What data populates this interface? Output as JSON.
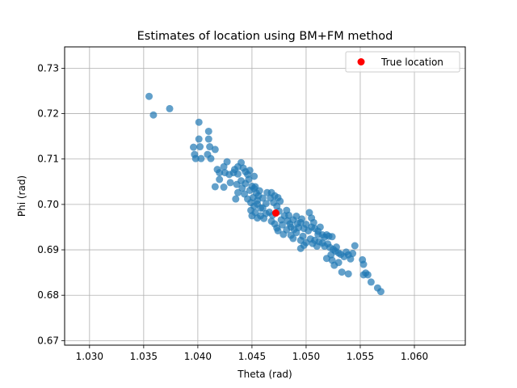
{
  "chart_data": {
    "type": "scatter",
    "title": "Estimates of location using BM+FM method",
    "xlabel": "Theta (rad)",
    "ylabel": "Phi (rad)",
    "xlim": [
      1.0277,
      1.0647
    ],
    "ylim": [
      0.669,
      0.7347
    ],
    "xticks": [
      1.03,
      1.035,
      1.04,
      1.045,
      1.05,
      1.055,
      1.06
    ],
    "xtick_labels": [
      "1.030",
      "1.035",
      "1.040",
      "1.045",
      "1.050",
      "1.055",
      "1.060"
    ],
    "yticks": [
      0.67,
      0.68,
      0.69,
      0.7,
      0.71,
      0.72,
      0.73
    ],
    "ytick_labels": [
      "0.67",
      "0.68",
      "0.69",
      "0.70",
      "0.71",
      "0.72",
      "0.73"
    ],
    "grid": true,
    "legend_position": "top-right",
    "series": [
      {
        "name": "",
        "color": "#1f77b4",
        "alpha": 0.7,
        "points": [
          [
            1.0355,
            0.7238
          ],
          [
            1.0359,
            0.7197
          ],
          [
            1.0374,
            0.7211
          ],
          [
            1.0401,
            0.7181
          ],
          [
            1.041,
            0.7161
          ],
          [
            1.041,
            0.7144
          ],
          [
            1.0401,
            0.7144
          ],
          [
            1.0411,
            0.7127
          ],
          [
            1.0416,
            0.7121
          ],
          [
            1.0396,
            0.7126
          ],
          [
            1.0397,
            0.711
          ],
          [
            1.0402,
            0.7127
          ],
          [
            1.0398,
            0.7101
          ],
          [
            1.0403,
            0.7101
          ],
          [
            1.0412,
            0.7101
          ],
          [
            1.0409,
            0.711
          ],
          [
            1.0418,
            0.7077
          ],
          [
            1.042,
            0.707
          ],
          [
            1.0424,
            0.7083
          ],
          [
            1.0427,
            0.7094
          ],
          [
            1.0425,
            0.707
          ],
          [
            1.0429,
            0.7066
          ],
          [
            1.0433,
            0.707
          ],
          [
            1.0437,
            0.7083
          ],
          [
            1.0434,
            0.7077
          ],
          [
            1.044,
            0.7092
          ],
          [
            1.0442,
            0.708
          ],
          [
            1.0437,
            0.7067
          ],
          [
            1.0444,
            0.7072
          ],
          [
            1.0446,
            0.7066
          ],
          [
            1.0448,
            0.7075
          ],
          [
            1.0452,
            0.7062
          ],
          [
            1.042,
            0.7055
          ],
          [
            1.0416,
            0.7039
          ],
          [
            1.0424,
            0.7038
          ],
          [
            1.043,
            0.7048
          ],
          [
            1.0436,
            0.7044
          ],
          [
            1.044,
            0.7052
          ],
          [
            1.0441,
            0.7036
          ],
          [
            1.0444,
            0.7046
          ],
          [
            1.0447,
            0.7055
          ],
          [
            1.045,
            0.704
          ],
          [
            1.0437,
            0.7026
          ],
          [
            1.0435,
            0.7012
          ],
          [
            1.0443,
            0.7023
          ],
          [
            1.0448,
            0.7031
          ],
          [
            1.0452,
            0.7035
          ],
          [
            1.0454,
            0.7025
          ],
          [
            1.0451,
            0.7015
          ],
          [
            1.0455,
            0.7009
          ],
          [
            1.0449,
            0.7004
          ],
          [
            1.0446,
            0.7012
          ],
          [
            1.0456,
            0.7019
          ],
          [
            1.0457,
            0.703
          ],
          [
            1.0453,
            0.7039
          ],
          [
            1.0455,
            0.7001
          ],
          [
            1.0452,
            0.6996
          ],
          [
            1.0458,
            0.6992
          ],
          [
            1.0463,
            0.7002
          ],
          [
            1.046,
            0.7014
          ],
          [
            1.0464,
            0.7026
          ],
          [
            1.0468,
            0.7026
          ],
          [
            1.0467,
            0.7014
          ],
          [
            1.047,
            0.7004
          ],
          [
            1.0471,
            0.7019
          ],
          [
            1.0474,
            0.7015
          ],
          [
            1.0476,
            0.7007
          ],
          [
            1.0473,
            0.6996
          ],
          [
            1.0475,
            0.6985
          ],
          [
            1.0466,
            0.6983
          ],
          [
            1.0469,
            0.6976
          ],
          [
            1.0463,
            0.698
          ],
          [
            1.0458,
            0.6975
          ],
          [
            1.0453,
            0.6982
          ],
          [
            1.0449,
            0.6987
          ],
          [
            1.045,
            0.6975
          ],
          [
            1.0455,
            0.697
          ],
          [
            1.0461,
            0.6969
          ],
          [
            1.0468,
            0.6963
          ],
          [
            1.0471,
            0.6957
          ],
          [
            1.0473,
            0.6948
          ],
          [
            1.0478,
            0.6955
          ],
          [
            1.0477,
            0.6966
          ],
          [
            1.048,
            0.6975
          ],
          [
            1.0482,
            0.6987
          ],
          [
            1.0484,
            0.6976
          ],
          [
            1.0483,
            0.6964
          ],
          [
            1.0485,
            0.6957
          ],
          [
            1.0488,
            0.6966
          ],
          [
            1.0486,
            0.695
          ],
          [
            1.0489,
            0.6945
          ],
          [
            1.0482,
            0.6944
          ],
          [
            1.0474,
            0.6942
          ],
          [
            1.0479,
            0.6934
          ],
          [
            1.0486,
            0.6932
          ],
          [
            1.0488,
            0.6925
          ],
          [
            1.0491,
            0.6938
          ],
          [
            1.0493,
            0.6949
          ],
          [
            1.0495,
            0.696
          ],
          [
            1.0491,
            0.6974
          ],
          [
            1.0496,
            0.6968
          ],
          [
            1.05,
            0.6956
          ],
          [
            1.0498,
            0.6947
          ],
          [
            1.0502,
            0.6942
          ],
          [
            1.0505,
            0.695
          ],
          [
            1.0503,
            0.6982
          ],
          [
            1.0505,
            0.697
          ],
          [
            1.0507,
            0.696
          ],
          [
            1.0508,
            0.6947
          ],
          [
            1.0511,
            0.6941
          ],
          [
            1.0513,
            0.695
          ],
          [
            1.0515,
            0.6933
          ],
          [
            1.0517,
            0.6928
          ],
          [
            1.0519,
            0.6933
          ],
          [
            1.0521,
            0.693
          ],
          [
            1.0524,
            0.6929
          ],
          [
            1.0511,
            0.6934
          ],
          [
            1.0497,
            0.693
          ],
          [
            1.0495,
            0.6921
          ],
          [
            1.05,
            0.6916
          ],
          [
            1.0504,
            0.6924
          ],
          [
            1.0508,
            0.6921
          ],
          [
            1.0512,
            0.6918
          ],
          [
            1.0515,
            0.6915
          ],
          [
            1.0517,
            0.6908
          ],
          [
            1.051,
            0.6908
          ],
          [
            1.0506,
            0.6914
          ],
          [
            1.0498,
            0.691
          ],
          [
            1.0495,
            0.6903
          ],
          [
            1.052,
            0.6913
          ],
          [
            1.0522,
            0.6905
          ],
          [
            1.0525,
            0.6901
          ],
          [
            1.0527,
            0.6897
          ],
          [
            1.0528,
            0.6906
          ],
          [
            1.053,
            0.6893
          ],
          [
            1.0532,
            0.689
          ],
          [
            1.0523,
            0.6889
          ],
          [
            1.0519,
            0.6881
          ],
          [
            1.0524,
            0.6877
          ],
          [
            1.0535,
            0.6885
          ],
          [
            1.0537,
            0.6895
          ],
          [
            1.0539,
            0.6889
          ],
          [
            1.0541,
            0.688
          ],
          [
            1.0543,
            0.6892
          ],
          [
            1.0545,
            0.6909
          ],
          [
            1.053,
            0.6872
          ],
          [
            1.0526,
            0.6866
          ],
          [
            1.0533,
            0.6851
          ],
          [
            1.0539,
            0.6847
          ],
          [
            1.0552,
            0.6878
          ],
          [
            1.0553,
            0.6868
          ],
          [
            1.0555,
            0.6849
          ],
          [
            1.0557,
            0.6845
          ],
          [
            1.0553,
            0.6845
          ],
          [
            1.056,
            0.6829
          ],
          [
            1.0566,
            0.6816
          ],
          [
            1.0569,
            0.6808
          ],
          [
            1.0492,
            0.6958
          ],
          [
            1.046,
            0.6992
          ]
        ]
      },
      {
        "name": "True location",
        "color": "#ff0000",
        "points": [
          [
            1.0472,
            0.6981
          ]
        ]
      }
    ]
  }
}
